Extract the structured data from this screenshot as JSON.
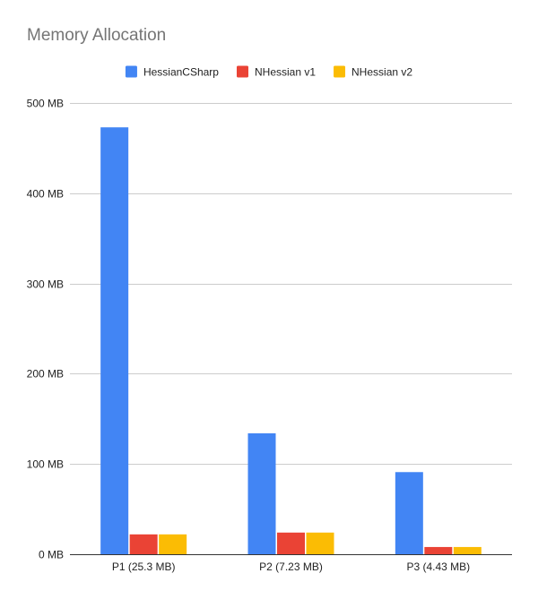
{
  "chart_data": {
    "type": "bar",
    "title": "Memory Allocation",
    "xlabel": "",
    "ylabel": "",
    "categories": [
      "P1 (25.3 MB)",
      "P2 (7.23 MB)",
      "P3 (4.43 MB)"
    ],
    "series": [
      {
        "name": "HessianCSharp",
        "color": "#4285f4",
        "values": [
          473,
          134,
          91
        ]
      },
      {
        "name": "NHessian v1",
        "color": "#ea4335",
        "values": [
          22,
          24,
          8
        ]
      },
      {
        "name": "NHessian v2",
        "color": "#fbbc04",
        "values": [
          22,
          24,
          8
        ]
      }
    ],
    "ylim": [
      0,
      500
    ],
    "yticks": [
      0,
      100,
      200,
      300,
      400,
      500
    ],
    "ytick_labels": [
      "0 MB",
      "100 MB",
      "200 MB",
      "300 MB",
      "400 MB",
      "500 MB"
    ],
    "grid": true,
    "legend_position": "top-center",
    "colors": {
      "gridline": "#cccccc",
      "axis_line": "#333333",
      "title": "#757575",
      "label": "#222222"
    }
  }
}
